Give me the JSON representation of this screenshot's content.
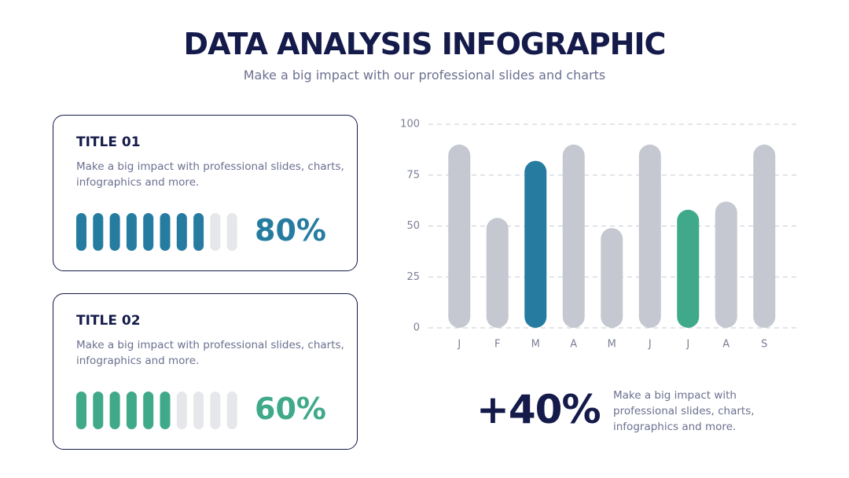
{
  "header": {
    "title": "DATA ANALYSIS INFOGRAPHIC",
    "subtitle": "Make a big impact with our professional slides and charts"
  },
  "cards": [
    {
      "title": "TITLE 01",
      "text": "Make a big impact with professional slides, charts, infographics and more.",
      "value": 80,
      "value_label": "80%",
      "color": "#267ca0"
    },
    {
      "title": "TITLE 02",
      "text": "Make a big impact with professional slides, charts, infographics and more.",
      "value": 60,
      "value_label": "60%",
      "color": "#3fa98a"
    }
  ],
  "stat": {
    "value": "+40%",
    "text": "Make a big impact with professional slides, charts, infographics and more."
  },
  "chart_data": {
    "type": "bar",
    "categories": [
      "J",
      "F",
      "M",
      "A",
      "M",
      "J",
      "J",
      "A",
      "S"
    ],
    "values": [
      90,
      54,
      82,
      90,
      49,
      90,
      58,
      62,
      90
    ],
    "colors": [
      "#c5c8d0",
      "#c5c8d0",
      "#267ca0",
      "#c5c8d0",
      "#c5c8d0",
      "#c5c8d0",
      "#3fa98a",
      "#c5c8d0",
      "#c5c8d0"
    ],
    "ylim": [
      0,
      100
    ],
    "yticks": [
      0,
      25,
      50,
      75,
      100
    ],
    "grid": true
  }
}
